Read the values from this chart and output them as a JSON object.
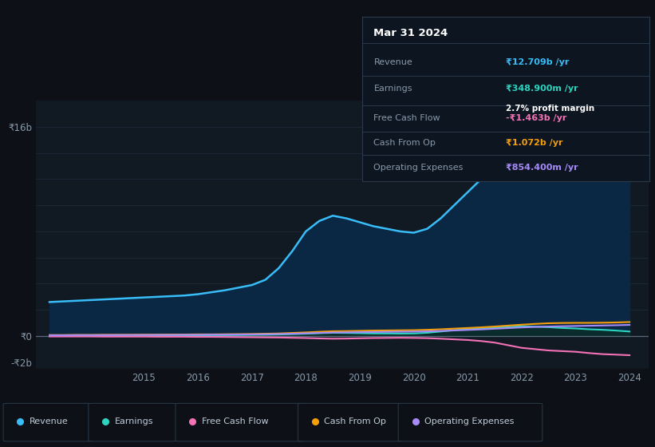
{
  "bg_color": "#0d1117",
  "plot_bg_color": "#111922",
  "grid_color": "#1e2d3d",
  "text_color": "#8899aa",
  "years": [
    2013.25,
    2013.5,
    2013.75,
    2014.0,
    2014.25,
    2014.5,
    2014.75,
    2015.0,
    2015.25,
    2015.5,
    2015.75,
    2016.0,
    2016.25,
    2016.5,
    2016.75,
    2017.0,
    2017.25,
    2017.5,
    2017.75,
    2018.0,
    2018.25,
    2018.5,
    2018.75,
    2019.0,
    2019.25,
    2019.5,
    2019.75,
    2020.0,
    2020.25,
    2020.5,
    2020.75,
    2021.0,
    2021.25,
    2021.5,
    2021.75,
    2022.0,
    2022.25,
    2022.5,
    2022.75,
    2023.0,
    2023.25,
    2023.5,
    2023.75,
    2024.0
  ],
  "revenue": [
    2.6,
    2.65,
    2.7,
    2.75,
    2.8,
    2.85,
    2.9,
    2.95,
    3.0,
    3.05,
    3.1,
    3.2,
    3.35,
    3.5,
    3.7,
    3.9,
    4.3,
    5.2,
    6.5,
    8.0,
    8.8,
    9.2,
    9.0,
    8.7,
    8.4,
    8.2,
    8.0,
    7.9,
    8.2,
    9.0,
    10.0,
    11.0,
    12.0,
    13.2,
    14.5,
    15.2,
    15.7,
    15.5,
    15.0,
    14.2,
    13.5,
    13.0,
    12.5,
    12.709
  ],
  "earnings": [
    0.03,
    0.03,
    0.03,
    0.04,
    0.04,
    0.04,
    0.04,
    0.05,
    0.05,
    0.05,
    0.06,
    0.06,
    0.07,
    0.07,
    0.08,
    0.09,
    0.1,
    0.12,
    0.15,
    0.18,
    0.22,
    0.25,
    0.24,
    0.22,
    0.2,
    0.2,
    0.19,
    0.2,
    0.25,
    0.35,
    0.45,
    0.55,
    0.6,
    0.65,
    0.7,
    0.75,
    0.72,
    0.68,
    0.62,
    0.58,
    0.52,
    0.48,
    0.42,
    0.3489
  ],
  "free_cash_flow": [
    -0.03,
    -0.03,
    -0.03,
    -0.03,
    -0.04,
    -0.04,
    -0.04,
    -0.04,
    -0.05,
    -0.05,
    -0.05,
    -0.06,
    -0.06,
    -0.07,
    -0.08,
    -0.09,
    -0.1,
    -0.11,
    -0.13,
    -0.15,
    -0.18,
    -0.2,
    -0.19,
    -0.17,
    -0.15,
    -0.14,
    -0.13,
    -0.14,
    -0.16,
    -0.2,
    -0.25,
    -0.3,
    -0.38,
    -0.5,
    -0.7,
    -0.9,
    -1.0,
    -1.1,
    -1.15,
    -1.2,
    -1.3,
    -1.38,
    -1.42,
    -1.463
  ],
  "cash_from_op": [
    0.08,
    0.08,
    0.09,
    0.09,
    0.1,
    0.1,
    0.1,
    0.11,
    0.11,
    0.12,
    0.12,
    0.13,
    0.13,
    0.14,
    0.15,
    0.16,
    0.18,
    0.2,
    0.24,
    0.28,
    0.33,
    0.37,
    0.38,
    0.4,
    0.42,
    0.43,
    0.44,
    0.45,
    0.48,
    0.52,
    0.57,
    0.62,
    0.67,
    0.73,
    0.8,
    0.87,
    0.93,
    0.98,
    1.0,
    1.01,
    1.01,
    1.02,
    1.04,
    1.072
  ],
  "operating_expenses": [
    0.06,
    0.06,
    0.07,
    0.07,
    0.07,
    0.08,
    0.08,
    0.08,
    0.09,
    0.09,
    0.1,
    0.1,
    0.11,
    0.11,
    0.12,
    0.13,
    0.14,
    0.16,
    0.18,
    0.21,
    0.24,
    0.27,
    0.28,
    0.3,
    0.31,
    0.32,
    0.33,
    0.34,
    0.36,
    0.39,
    0.43,
    0.47,
    0.51,
    0.56,
    0.61,
    0.66,
    0.7,
    0.73,
    0.75,
    0.77,
    0.79,
    0.81,
    0.83,
    0.8544
  ],
  "revenue_color": "#38bdf8",
  "earnings_color": "#2dd4bf",
  "free_cash_flow_color": "#f472b6",
  "cash_from_op_color": "#f59e0b",
  "operating_expenses_color": "#a78bfa",
  "revenue_fill": "#0a2744",
  "earnings_fill": "#0a2e2a",
  "ylim_min": -2.5,
  "ylim_max": 18.0,
  "xlim_min": 2013.0,
  "xlim_max": 2024.35,
  "xticks": [
    2015,
    2016,
    2017,
    2018,
    2019,
    2020,
    2021,
    2022,
    2023,
    2024
  ],
  "legend_labels": [
    "Revenue",
    "Earnings",
    "Free Cash Flow",
    "Cash From Op",
    "Operating Expenses"
  ],
  "legend_colors": [
    "#38bdf8",
    "#2dd4bf",
    "#f472b6",
    "#f59e0b",
    "#a78bfa"
  ],
  "info_box": {
    "date": "Mar 31 2024",
    "revenue_label": "Revenue",
    "revenue_val": "₹12.709b /yr",
    "earnings_label": "Earnings",
    "earnings_val": "₹348.900m /yr",
    "profit_margin": "2.7% profit margin",
    "fcf_label": "Free Cash Flow",
    "fcf_val": "-₹1.463b /yr",
    "cash_op_label": "Cash From Op",
    "cash_op_val": "₹1.072b /yr",
    "op_exp_label": "Operating Expenses",
    "op_exp_val": "₹854.400m /yr"
  }
}
